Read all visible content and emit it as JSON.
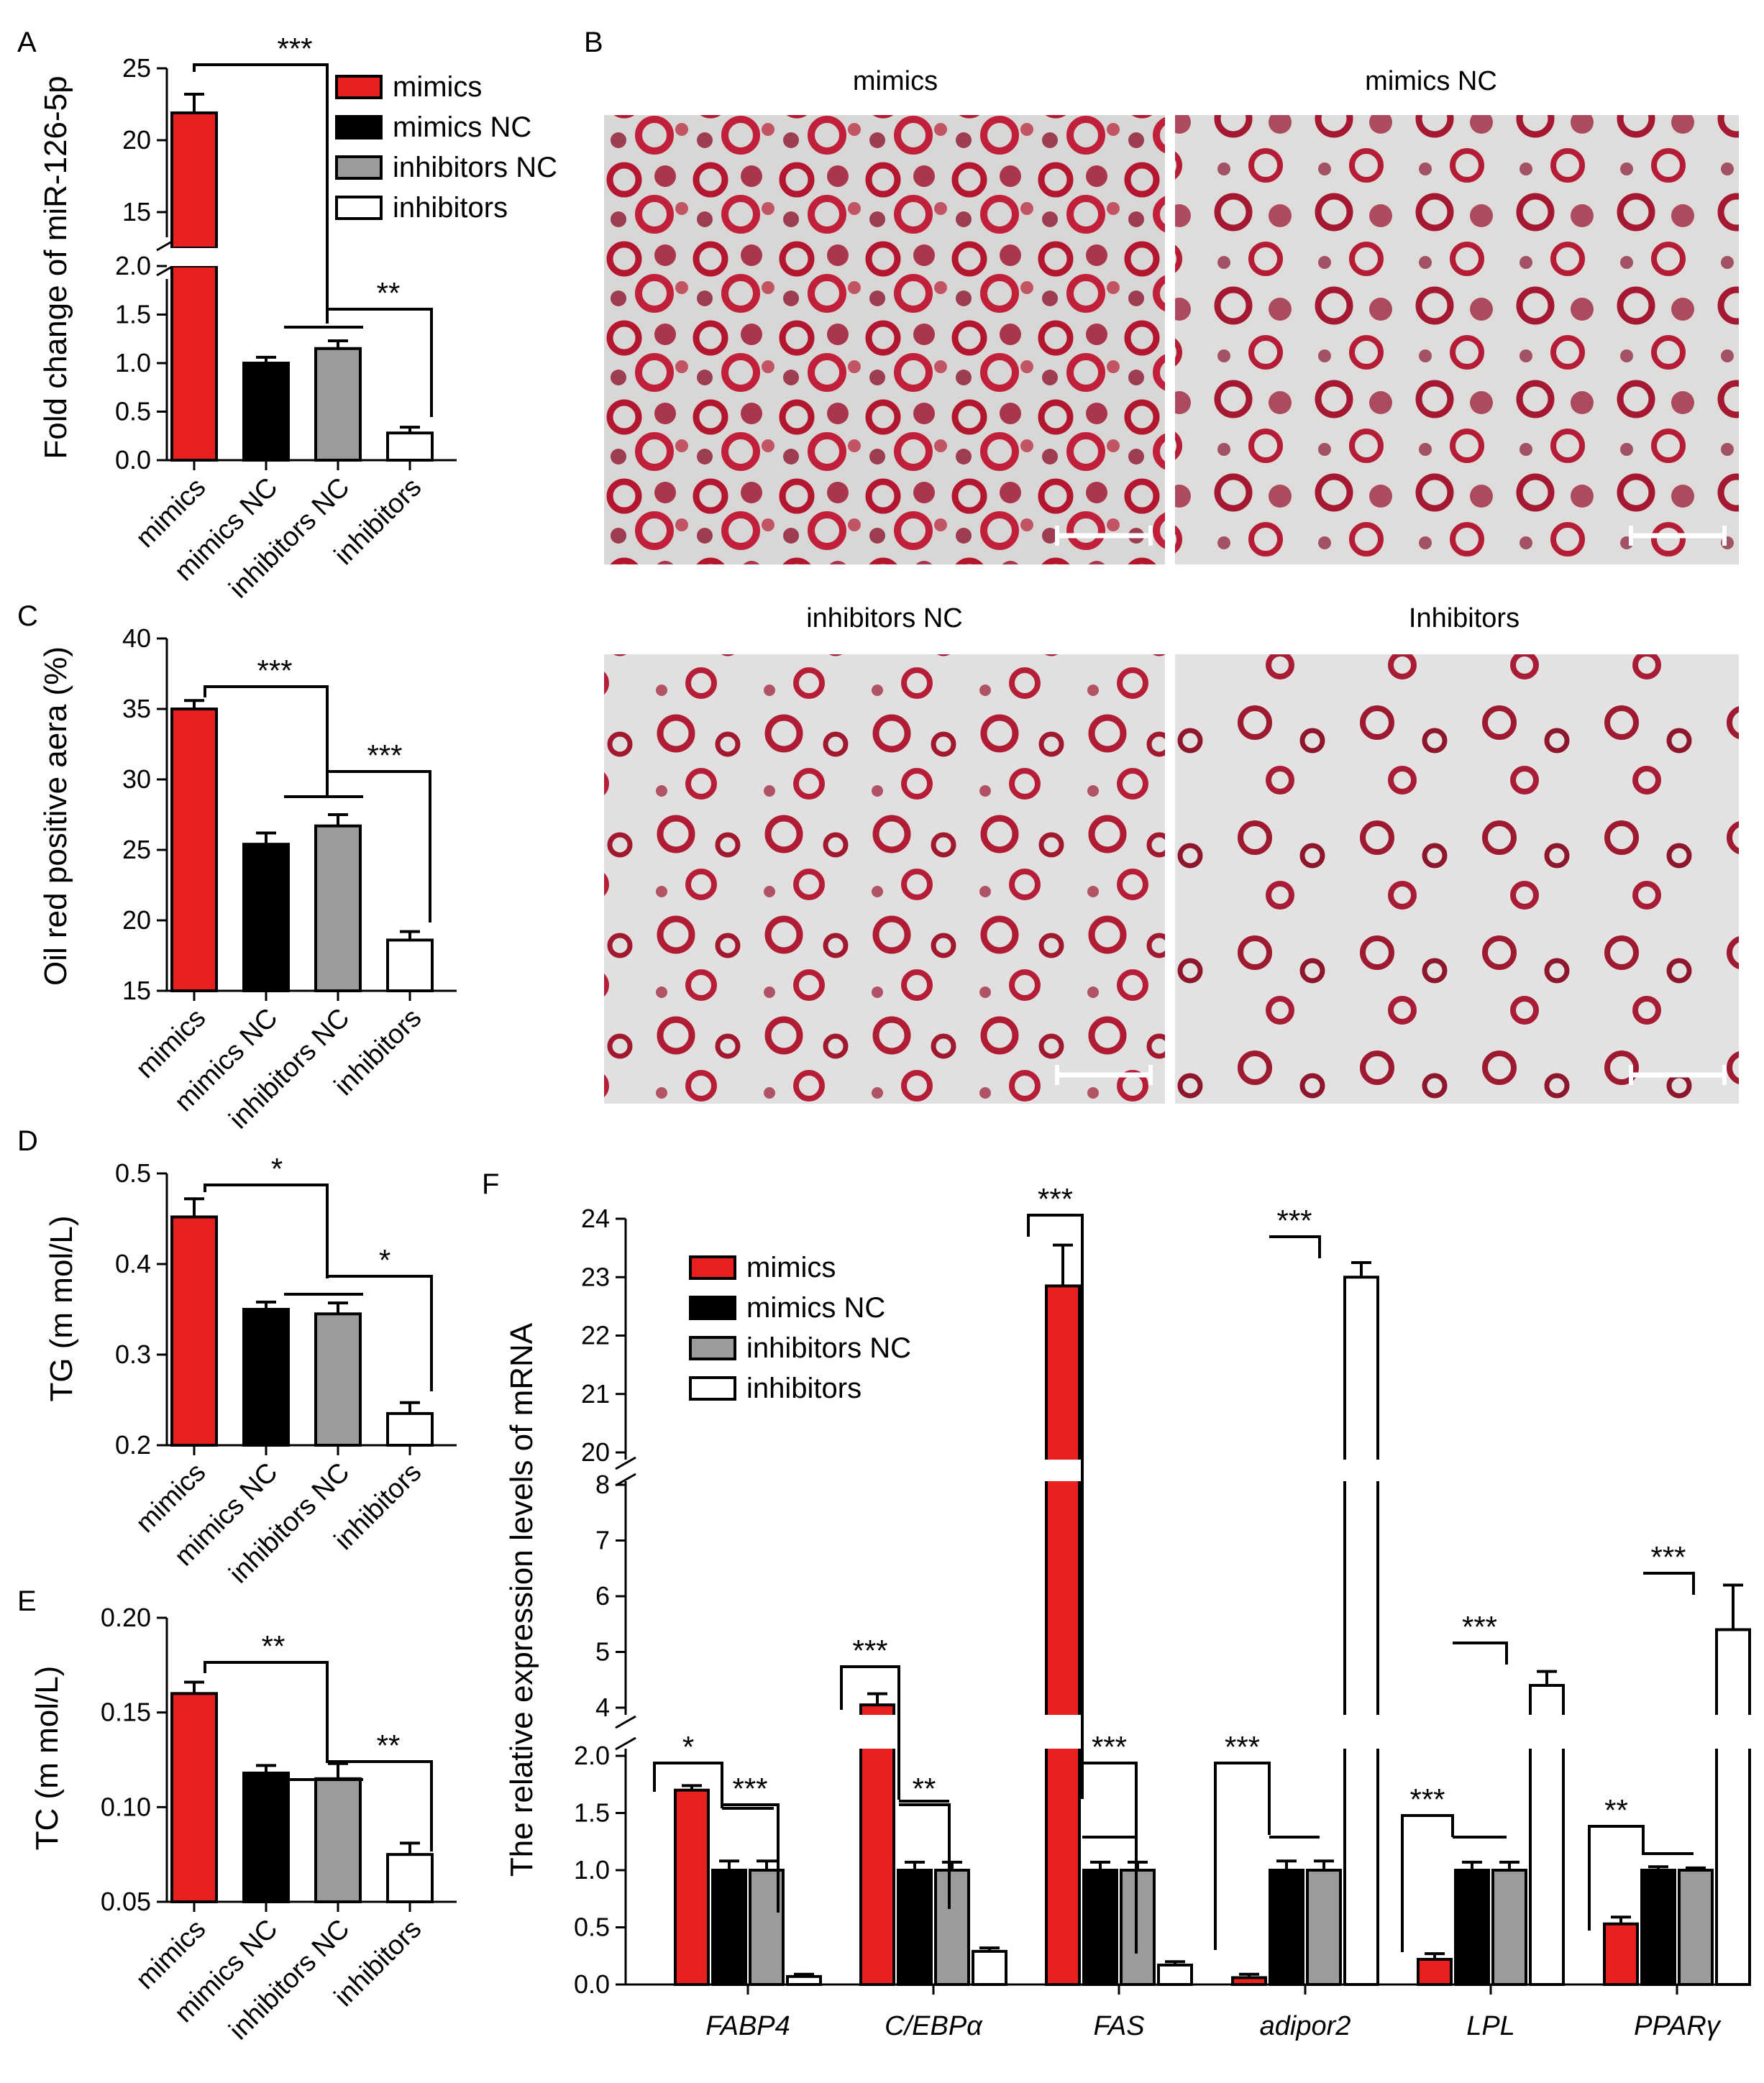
{
  "colors": {
    "mimics": "#e8201e",
    "mimics NC": "#000000",
    "inhibitors NC": "#9b9b9b",
    "inhibitors": "#ffffff",
    "scalebar": "#ffffff",
    "stain_bg": "#dcdcdc",
    "stain_cell": "#b5182e"
  },
  "panel_labels": [
    "A",
    "B",
    "C",
    "D",
    "E",
    "F"
  ],
  "microscopy": {
    "titles": [
      "mimics",
      "mimics NC",
      "inhibitors NC",
      "Inhibitors"
    ]
  },
  "chart_data": [
    {
      "panel": "A",
      "type": "bar",
      "categories": [
        "mimics",
        "mimics NC",
        "inhibitors NC",
        "inhibitors"
      ],
      "values": [
        21.9,
        1.0,
        1.15,
        0.28
      ],
      "errors": [
        1.3,
        0.06,
        0.08,
        0.06
      ],
      "ylabel": "Fold change of miR-126-5p",
      "broken_axis": {
        "lower": [
          0,
          2.0
        ],
        "upper": [
          12.5,
          25
        ]
      },
      "yticks_lower": [
        "0.0",
        "0.5",
        "1.0",
        "1.5",
        "2.0"
      ],
      "yticks_upper": [
        "15",
        "20",
        "25"
      ],
      "legend": [
        "mimics",
        "mimics NC",
        "inhibitors NC",
        "inhibitors"
      ],
      "significance": [
        "***",
        "**"
      ]
    },
    {
      "panel": "C",
      "type": "bar",
      "categories": [
        "mimics",
        "mimics NC",
        "inhibitors NC",
        "inhibitors"
      ],
      "values": [
        35.0,
        25.4,
        26.7,
        18.6
      ],
      "errors": [
        0.6,
        0.8,
        0.8,
        0.6
      ],
      "ylabel": "Oil red positive aera (%)",
      "ylim": [
        15,
        40
      ],
      "yticks": [
        "15",
        "20",
        "25",
        "30",
        "35",
        "40"
      ],
      "significance": [
        "***",
        "***"
      ]
    },
    {
      "panel": "D",
      "type": "bar",
      "categories": [
        "mimics",
        "mimics NC",
        "inhibitors NC",
        "inhibitors"
      ],
      "values": [
        0.452,
        0.35,
        0.345,
        0.235
      ],
      "errors": [
        0.02,
        0.008,
        0.012,
        0.012
      ],
      "ylabel": "TG (m mol/L)",
      "ylim": [
        0.2,
        0.5
      ],
      "yticks": [
        "0.2",
        "0.3",
        "0.4",
        "0.5"
      ],
      "significance": [
        "*",
        "*"
      ]
    },
    {
      "panel": "E",
      "type": "bar",
      "categories": [
        "mimics",
        "mimics NC",
        "inhibitors NC",
        "inhibitors"
      ],
      "values": [
        0.16,
        0.118,
        0.115,
        0.075
      ],
      "errors": [
        0.006,
        0.004,
        0.008,
        0.006
      ],
      "ylabel": "TC (m mol/L)",
      "ylim": [
        0.05,
        0.2
      ],
      "yticks": [
        "0.05",
        "0.10",
        "0.15",
        "0.20"
      ],
      "significance": [
        "**",
        "**"
      ]
    },
    {
      "panel": "F",
      "type": "bar",
      "categories": [
        "FABP4",
        "C/EBPα",
        "FAS",
        "adipor2",
        "LPL",
        "PPARγ"
      ],
      "series": [
        {
          "name": "mimics",
          "values": [
            1.7,
            4.05,
            22.85,
            0.06,
            0.22,
            0.53
          ],
          "errors": [
            0.04,
            0.2,
            0.7,
            0.03,
            0.05,
            0.06
          ]
        },
        {
          "name": "mimics NC",
          "values": [
            1.0,
            1.0,
            1.0,
            1.0,
            1.0,
            1.0
          ],
          "errors": [
            0.08,
            0.07,
            0.07,
            0.08,
            0.07,
            0.03
          ]
        },
        {
          "name": "inhibitors NC",
          "values": [
            1.0,
            1.0,
            1.0,
            1.0,
            1.0,
            1.0
          ],
          "errors": [
            0.08,
            0.07,
            0.07,
            0.08,
            0.07,
            0.02
          ]
        },
        {
          "name": "inhibitors",
          "values": [
            0.07,
            0.29,
            0.17,
            23.0,
            4.4,
            5.4
          ],
          "errors": [
            0.02,
            0.03,
            0.03,
            0.25,
            0.25,
            0.8
          ]
        }
      ],
      "ylabel": "The relative expression levels of mRNA",
      "broken_axis": {
        "seg1": [
          0,
          2.0
        ],
        "seg2": [
          4,
          8
        ],
        "seg3": [
          20,
          24
        ]
      },
      "yticks_seg1": [
        "0.0",
        "0.5",
        "1.0",
        "1.5",
        "2.0"
      ],
      "yticks_seg2": [
        "4",
        "5",
        "6",
        "7",
        "8"
      ],
      "yticks_seg3": [
        "20",
        "21",
        "22",
        "23",
        "24"
      ],
      "legend": [
        "mimics",
        "mimics NC",
        "inhibitors NC",
        "inhibitors"
      ],
      "significance": [
        [
          "*",
          "***"
        ],
        [
          "***",
          "**"
        ],
        [
          "***",
          "***"
        ],
        [
          "***",
          "***"
        ],
        [
          "***",
          "***"
        ],
        [
          "**",
          "***"
        ]
      ]
    }
  ]
}
